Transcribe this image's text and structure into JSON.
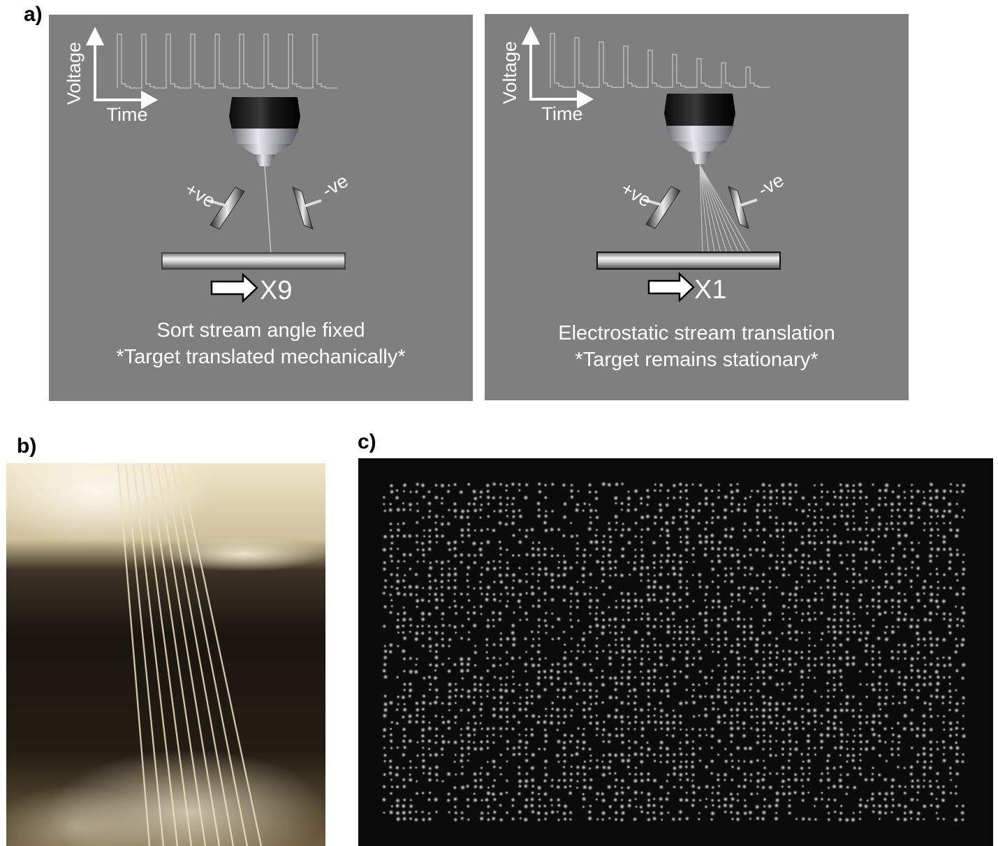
{
  "labels": {
    "a": "a)",
    "b": "b)",
    "c": "c)"
  },
  "panel_left": {
    "y_axis": "Voltage",
    "x_axis": "Time",
    "plus": "+ve",
    "minus": "-ve",
    "multiplier": "X9",
    "caption_line1": "Sort stream angle fixed",
    "caption_line2": "*Target translated mechanically*",
    "pulse_heights": [
      1,
      1,
      1,
      1,
      1,
      1,
      1,
      1,
      1
    ],
    "stream_count": 1
  },
  "panel_right": {
    "y_axis": "Voltage",
    "x_axis": "Time",
    "plus": "+ve",
    "minus": "-ve",
    "multiplier": "X1",
    "caption_line1": "Electrostatic stream translation",
    "caption_line2": "*Target remains stationary*",
    "pulse_heights": [
      1,
      0.92,
      0.84,
      0.76,
      0.68,
      0.6,
      0.52,
      0.44,
      0.36
    ],
    "stream_count": 9
  },
  "colors": {
    "diagram_bg": "#7f7f7f",
    "text": "#ffffff",
    "photo_b_bg": "#1b160f",
    "photo_c_bg": "#0b0b0b"
  }
}
